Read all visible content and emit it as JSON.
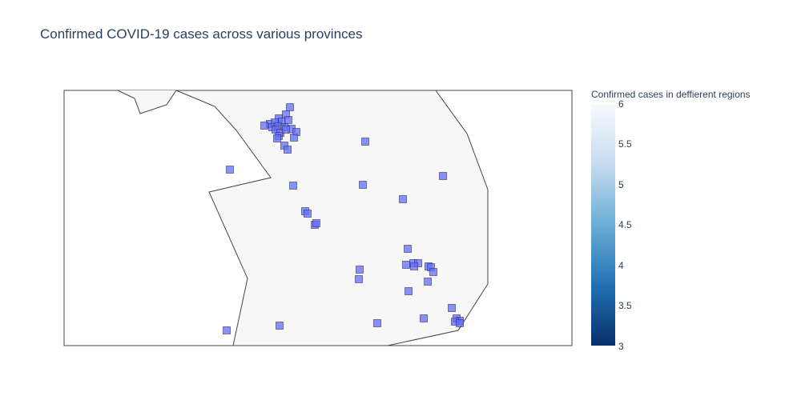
{
  "title": "Confirmed COVID-19 cases across various provinces",
  "colorbar": {
    "title": "Confirmed cases in deffierent regions",
    "ticks": [
      "6",
      "5.5",
      "5",
      "4.5",
      "4",
      "3.5",
      "3"
    ],
    "colorscale": [
      "#08306b",
      "#2171b5",
      "#6baed6",
      "#c6dbef",
      "#f7fbff"
    ]
  },
  "colors": {
    "marker_fill": "#636efa",
    "marker_opacity": 0.75,
    "land_fill": "#f7f7f7",
    "border": "#444444"
  },
  "chart_data": {
    "type": "scatter_geo",
    "marker_symbol": "square",
    "points": [
      [
        362,
        134
      ],
      [
        348,
        148
      ],
      [
        357,
        143
      ],
      [
        337,
        155
      ],
      [
        343,
        153
      ],
      [
        352,
        152
      ],
      [
        360,
        150
      ],
      [
        330,
        157
      ],
      [
        340,
        159
      ],
      [
        347,
        158
      ],
      [
        355,
        159
      ],
      [
        364,
        161
      ],
      [
        370,
        165
      ],
      [
        344,
        162
      ],
      [
        350,
        166
      ],
      [
        357,
        162
      ],
      [
        348,
        170
      ],
      [
        346,
        173
      ],
      [
        367,
        172
      ],
      [
        355,
        182
      ],
      [
        359,
        187
      ],
      [
        456,
        177
      ],
      [
        287,
        212
      ],
      [
        553,
        220
      ],
      [
        366,
        232
      ],
      [
        453,
        231
      ],
      [
        503,
        249
      ],
      [
        381,
        264
      ],
      [
        384,
        267
      ],
      [
        393,
        281
      ],
      [
        395,
        279
      ],
      [
        509,
        311
      ],
      [
        507,
        331
      ],
      [
        516,
        329
      ],
      [
        522,
        329
      ],
      [
        517,
        333
      ],
      [
        535,
        333
      ],
      [
        538,
        334
      ],
      [
        541,
        340
      ],
      [
        449,
        337
      ],
      [
        448,
        349
      ],
      [
        534,
        352
      ],
      [
        510,
        364
      ],
      [
        564,
        385
      ],
      [
        529,
        398
      ],
      [
        570,
        398
      ],
      [
        574,
        401
      ],
      [
        568,
        402
      ],
      [
        574,
        404
      ],
      [
        471,
        404
      ],
      [
        349,
        407
      ],
      [
        283,
        413
      ]
    ]
  }
}
